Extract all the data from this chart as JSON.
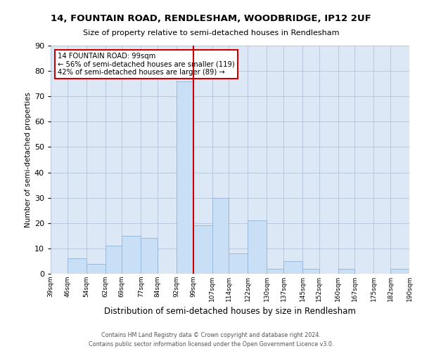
{
  "title": "14, FOUNTAIN ROAD, RENDLESHAM, WOODBRIDGE, IP12 2UF",
  "subtitle": "Size of property relative to semi-detached houses in Rendlesham",
  "xlabel": "Distribution of semi-detached houses by size in Rendlesham",
  "ylabel": "Number of semi-detached properties",
  "bin_edges": [
    39,
    46,
    54,
    62,
    69,
    77,
    84,
    92,
    99,
    107,
    114,
    122,
    130,
    137,
    145,
    152,
    160,
    167,
    175,
    182,
    190
  ],
  "bar_heights": [
    0,
    6,
    4,
    11,
    15,
    14,
    0,
    76,
    19,
    30,
    8,
    21,
    2,
    5,
    2,
    0,
    2,
    0,
    0,
    2
  ],
  "tick_labels": [
    "39sqm",
    "46sqm",
    "54sqm",
    "62sqm",
    "69sqm",
    "77sqm",
    "84sqm",
    "92sqm",
    "99sqm",
    "107sqm",
    "114sqm",
    "122sqm",
    "130sqm",
    "137sqm",
    "145sqm",
    "152sqm",
    "160sqm",
    "167sqm",
    "175sqm",
    "182sqm",
    "190sqm"
  ],
  "bar_color": "#c9dff5",
  "bar_edge_color": "#9ab8d8",
  "property_line_x": 99,
  "property_line_color": "#cc0000",
  "annotation_title": "14 FOUNTAIN ROAD: 99sqm",
  "annotation_line1": "← 56% of semi-detached houses are smaller (119)",
  "annotation_line2": "42% of semi-detached houses are larger (89) →",
  "annotation_box_facecolor": "#ffffff",
  "annotation_box_edgecolor": "#cc0000",
  "ylim": [
    0,
    90
  ],
  "yticks": [
    0,
    10,
    20,
    30,
    40,
    50,
    60,
    70,
    80,
    90
  ],
  "grid_color": "#b8c8dc",
  "background_color": "#dce8f5",
  "footer_line1": "Contains HM Land Registry data © Crown copyright and database right 2024.",
  "footer_line2": "Contains public sector information licensed under the Open Government Licence v3.0."
}
